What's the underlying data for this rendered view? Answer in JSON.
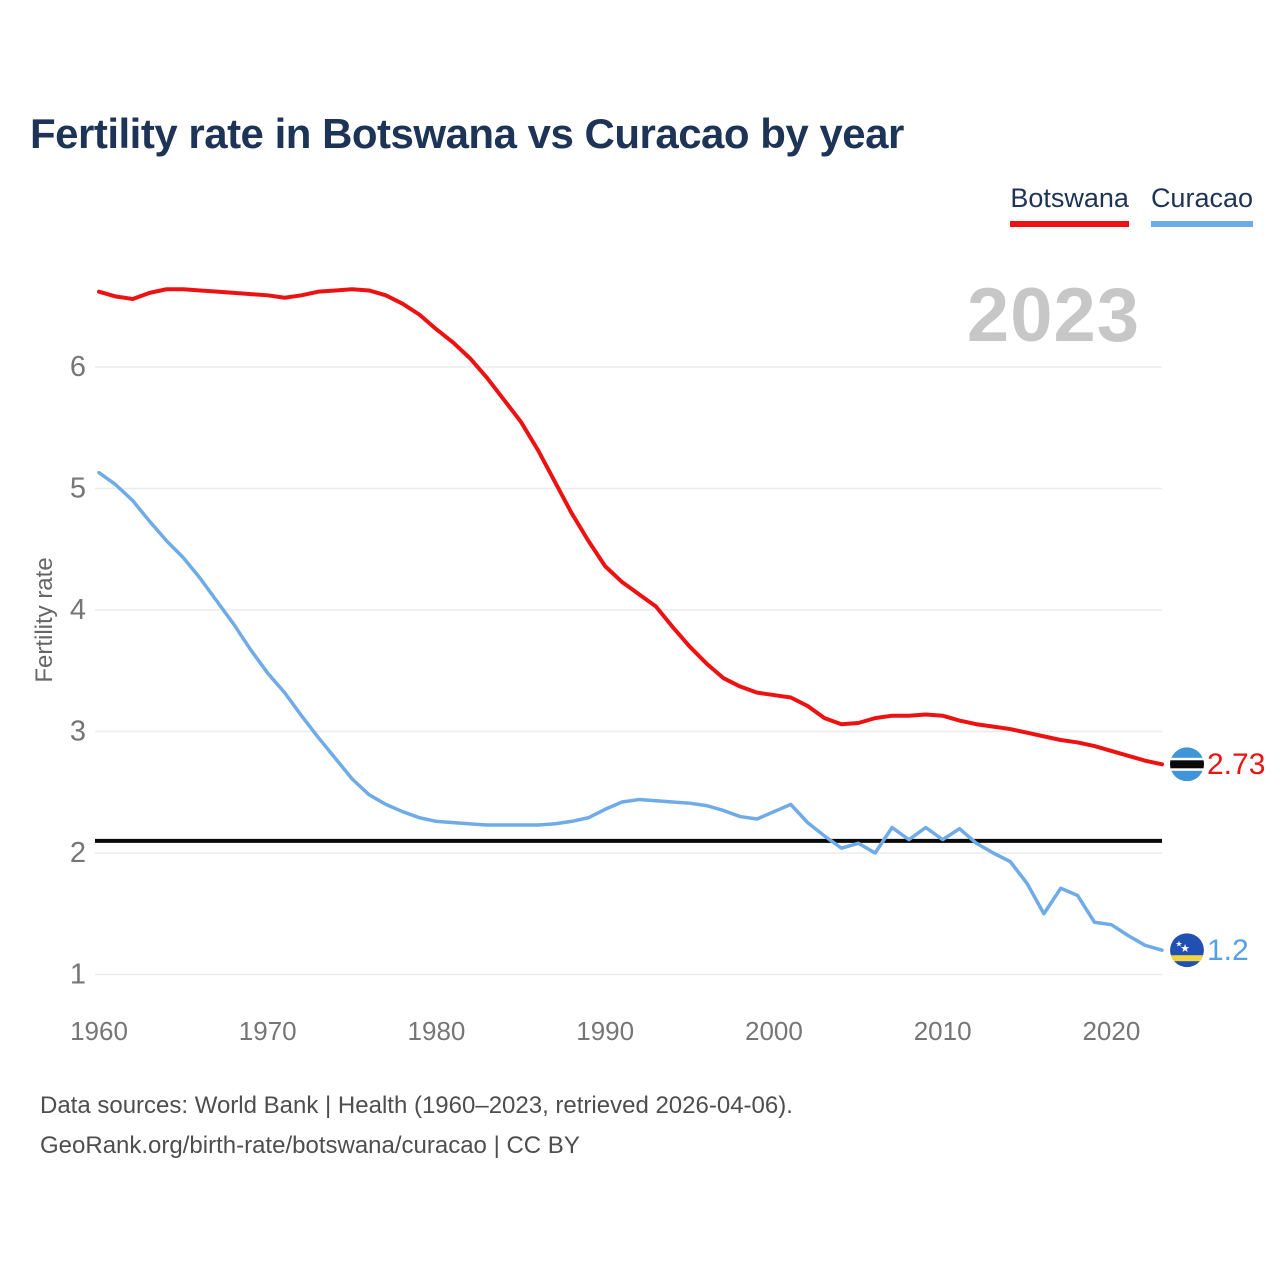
{
  "title": {
    "text": "Fertility rate in Botswana vs Curacao by year",
    "color": "#1d3456"
  },
  "legend": {
    "items": [
      {
        "label": "Botswana",
        "color": "#ee1111"
      },
      {
        "label": "Curacao",
        "color": "#6fabe7"
      }
    ]
  },
  "watermark": {
    "text": "2023",
    "color": "#c7c7c7"
  },
  "end_labels": {
    "botswana": {
      "text": "2.73",
      "color": "#ee1111"
    },
    "curacao": {
      "text": "1.2",
      "color": "#55a0e4"
    }
  },
  "footer": {
    "line1": "Data sources: World Bank | Health (1960–2023, retrieved 2026-04-06).",
    "line2": "GeoRank.org/birth-rate/botswana/curacao | CC BY",
    "color": "#4e4e4e"
  },
  "chart_data": {
    "type": "line",
    "title": "Fertility rate in Botswana vs Curacao by year",
    "xlabel": "",
    "ylabel": "Fertility rate",
    "x_ticks": [
      1960,
      1970,
      1980,
      1990,
      2000,
      2010,
      2020
    ],
    "y_ticks": [
      1,
      2,
      3,
      4,
      5,
      6
    ],
    "xlim": [
      1960,
      2023
    ],
    "ylim": [
      0.75,
      6.9
    ],
    "grid": "horizontal",
    "legend_position": "top-right",
    "annotation": "2023",
    "reference_line": {
      "value": 2.1,
      "color": "#0a0a0a"
    },
    "years": [
      1960,
      1961,
      1962,
      1963,
      1964,
      1965,
      1966,
      1967,
      1968,
      1969,
      1970,
      1971,
      1972,
      1973,
      1974,
      1975,
      1976,
      1977,
      1978,
      1979,
      1980,
      1981,
      1982,
      1983,
      1984,
      1985,
      1986,
      1987,
      1988,
      1989,
      1990,
      1991,
      1992,
      1993,
      1994,
      1995,
      1996,
      1997,
      1998,
      1999,
      2000,
      2001,
      2002,
      2003,
      2004,
      2005,
      2006,
      2007,
      2008,
      2009,
      2010,
      2011,
      2012,
      2013,
      2014,
      2015,
      2016,
      2017,
      2018,
      2019,
      2020,
      2021,
      2022,
      2023
    ],
    "series": [
      {
        "name": "Botswana",
        "color": "#ee1111",
        "stroke_width": 4,
        "final_value": 2.73,
        "values": [
          6.62,
          6.58,
          6.56,
          6.61,
          6.64,
          6.64,
          6.63,
          6.62,
          6.61,
          6.6,
          6.59,
          6.57,
          6.59,
          6.62,
          6.63,
          6.64,
          6.63,
          6.59,
          6.52,
          6.43,
          6.31,
          6.2,
          6.07,
          5.91,
          5.73,
          5.55,
          5.32,
          5.06,
          4.8,
          4.57,
          4.36,
          4.23,
          4.13,
          4.03,
          3.86,
          3.7,
          3.56,
          3.44,
          3.37,
          3.32,
          3.3,
          3.28,
          3.21,
          3.11,
          3.06,
          3.07,
          3.11,
          3.13,
          3.13,
          3.14,
          3.13,
          3.09,
          3.06,
          3.04,
          3.02,
          2.99,
          2.96,
          2.93,
          2.91,
          2.88,
          2.84,
          2.8,
          2.76,
          2.73
        ]
      },
      {
        "name": "Curacao",
        "color": "#6fabe7",
        "stroke_width": 3.5,
        "final_value": 1.2,
        "values": [
          5.13,
          5.03,
          4.9,
          4.73,
          4.57,
          4.43,
          4.26,
          4.07,
          3.88,
          3.67,
          3.48,
          3.32,
          3.13,
          2.95,
          2.78,
          2.61,
          2.48,
          2.4,
          2.34,
          2.29,
          2.26,
          2.25,
          2.24,
          2.23,
          2.23,
          2.23,
          2.23,
          2.24,
          2.26,
          2.29,
          2.36,
          2.42,
          2.44,
          2.43,
          2.42,
          2.41,
          2.39,
          2.35,
          2.3,
          2.28,
          2.34,
          2.4,
          2.25,
          2.14,
          2.04,
          2.08,
          2.0,
          2.21,
          2.11,
          2.21,
          2.11,
          2.2,
          2.08,
          2.0,
          1.93,
          1.75,
          1.5,
          1.71,
          1.65,
          1.43,
          1.41,
          1.32,
          1.24,
          1.2
        ]
      }
    ],
    "flags": {
      "botswana": {
        "bg": "#3f95d8",
        "band": "#0a0a0a",
        "fimbriation": "#ffffff"
      },
      "curacao": {
        "bg": "#2150b4",
        "stripe": "#f4d33c",
        "stars": "#ffffff"
      }
    },
    "axis_text_color": "#767676",
    "grid_color": "#ebebeb"
  }
}
